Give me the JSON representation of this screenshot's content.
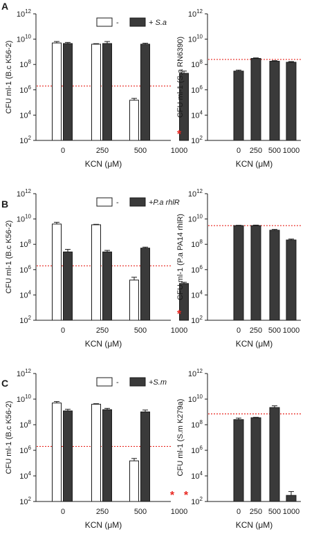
{
  "chart_data": [
    {
      "type": "bar",
      "panel_label": "A",
      "categories": [
        "0",
        "250",
        "500",
        "1000"
      ],
      "xlabel": "KCN (μM)",
      "ylabel": "CFU ml-1 (B.c K56-2)",
      "ylog": true,
      "ylim": [
        100,
        1000000000000
      ],
      "yticks": [
        "10",
        "10",
        "10",
        "10",
        "10",
        "10"
      ],
      "ytick_exp": [
        "2",
        "4",
        "6",
        "8",
        "10",
        "12"
      ],
      "legend": [
        "-",
        "+ S.a"
      ],
      "legend_placement": "top-right",
      "threshold": 2000000,
      "threshold_color": "#e8251f",
      "series": [
        {
          "name": "-",
          "fill": "#ffffff",
          "values": [
            5000000000.0,
            4000000000.0,
            150000.0,
            null
          ],
          "errors": [
            1500000000.0,
            400000000.0,
            60000.0,
            null
          ]
        },
        {
          "name": "+ S.a",
          "fill": "#3a3a3a",
          "values": [
            4500000000.0,
            4500000000.0,
            4000000000.0,
            20000000.0
          ],
          "errors": [
            1000000000.0,
            2000000000.0,
            800000000.0,
            10000000.0
          ]
        }
      ],
      "markers": [
        {
          "category": "1000",
          "symbol": "*",
          "color": "#e8251f"
        }
      ]
    },
    {
      "type": "bar",
      "panel_label": "",
      "categories": [
        "0",
        "250",
        "500",
        "1000"
      ],
      "xlabel": "KCN (μM)",
      "ylabel": "CFU ml-1 (S.a RN6390)",
      "ylog": true,
      "ylim": [
        100,
        1000000000000
      ],
      "yticks": [
        "10",
        "10",
        "10",
        "10",
        "10",
        "10"
      ],
      "ytick_exp": [
        "2",
        "4",
        "6",
        "8",
        "10",
        "12"
      ],
      "legend": [],
      "threshold": 250000000,
      "threshold_color": "#e8251f",
      "series": [
        {
          "name": "",
          "fill": "#3a3a3a",
          "values": [
            30000000.0,
            300000000.0,
            180000000.0,
            150000000.0
          ],
          "errors": [
            6000000.0,
            30000000.0,
            20000000.0,
            20000000.0
          ]
        }
      ],
      "markers": []
    },
    {
      "type": "bar",
      "panel_label": "B",
      "categories": [
        "0",
        "250",
        "500",
        "1000"
      ],
      "xlabel": "KCN (μM)",
      "ylabel": "CFU ml-1 (B.c K56-2)",
      "ylog": true,
      "ylim": [
        100,
        1000000000000
      ],
      "yticks": [
        "10",
        "10",
        "10",
        "10",
        "10",
        "10"
      ],
      "ytick_exp": [
        "2",
        "4",
        "6",
        "8",
        "10",
        "12"
      ],
      "legend": [
        "-",
        "+P.a rhlR"
      ],
      "legend_placement": "top-right",
      "threshold": 2000000,
      "threshold_color": "#e8251f",
      "series": [
        {
          "name": "-",
          "fill": "#ffffff",
          "values": [
            4000000000.0,
            3500000000.0,
            150000.0,
            null
          ],
          "errors": [
            1500000000.0,
            300000000.0,
            100000.0,
            null
          ]
        },
        {
          "name": "+P.a rhlR",
          "fill": "#3a3a3a",
          "values": [
            25000000.0,
            25000000.0,
            50000000.0,
            80000.0
          ],
          "errors": [
            15000000.0,
            8000000.0,
            10000000.0,
            20000.0
          ]
        }
      ],
      "markers": [
        {
          "category": "1000",
          "symbol": "*",
          "color": "#e8251f"
        }
      ]
    },
    {
      "type": "bar",
      "panel_label": "",
      "categories": [
        "0",
        "250",
        "500",
        "1000"
      ],
      "xlabel": "KCN (μM)",
      "ylabel": "CFU ml-1 (P.a PA14 rhlR)",
      "ylog": true,
      "ylim": [
        100,
        1000000000000
      ],
      "yticks": [
        "10",
        "10",
        "10",
        "10",
        "10",
        "10"
      ],
      "ytick_exp": [
        "2",
        "4",
        "6",
        "8",
        "10",
        "12"
      ],
      "legend": [],
      "threshold": 3000000000,
      "threshold_color": "#e8251f",
      "series": [
        {
          "name": "",
          "fill": "#3a3a3a",
          "values": [
            3000000000.0,
            3000000000.0,
            1300000000.0,
            220000000.0
          ],
          "errors": [
            200000000.0,
            300000000.0,
            200000000.0,
            40000000.0
          ]
        }
      ],
      "markers": []
    },
    {
      "type": "bar",
      "panel_label": "C",
      "categories": [
        "0",
        "250",
        "500",
        "1000"
      ],
      "xlabel": "KCN (μM)",
      "ylabel": "CFU ml-1 (B.c K56-2)",
      "ylog": true,
      "ylim": [
        100,
        1000000000000
      ],
      "yticks": [
        "10",
        "10",
        "10",
        "10",
        "10",
        "10"
      ],
      "ytick_exp": [
        "2",
        "4",
        "6",
        "8",
        "10",
        "12"
      ],
      "legend": [
        "-",
        "+S.m"
      ],
      "legend_placement": "top-right",
      "threshold": 2000000,
      "threshold_color": "#e8251f",
      "series": [
        {
          "name": "-",
          "fill": "#ffffff",
          "values": [
            5000000000.0,
            4000000000.0,
            150000.0,
            null
          ],
          "errors": [
            1500000000.0,
            400000000.0,
            80000.0,
            null
          ]
        },
        {
          "name": "+S.m",
          "fill": "#3a3a3a",
          "values": [
            1200000000.0,
            1500000000.0,
            1000000000.0,
            null
          ],
          "errors": [
            400000000.0,
            400000000.0,
            400000000.0,
            null
          ]
        }
      ],
      "markers": [
        {
          "category": "1000",
          "symbol": "*",
          "color": "#e8251f"
        },
        {
          "category": "1000",
          "symbol": "*",
          "color": "#e8251f"
        }
      ]
    },
    {
      "type": "bar",
      "panel_label": "",
      "categories": [
        "0",
        "250",
        "500",
        "1000"
      ],
      "xlabel": "KCN (μM)",
      "ylabel": "CFU ml-1 (S.m K279a)",
      "ylog": true,
      "ylim": [
        100,
        1000000000000
      ],
      "yticks": [
        "10",
        "10",
        "10",
        "10",
        "10",
        "10"
      ],
      "ytick_exp": [
        "2",
        "4",
        "6",
        "8",
        "10",
        "12"
      ],
      "legend": [],
      "threshold": 700000000,
      "threshold_color": "#e8251f",
      "series": [
        {
          "name": "",
          "fill": "#3a3a3a",
          "values": [
            250000000.0,
            350000000.0,
            2200000000.0,
            300
          ],
          "errors": [
            80000000.0,
            30000000.0,
            800000000.0,
            300
          ]
        }
      ],
      "markers": []
    }
  ]
}
